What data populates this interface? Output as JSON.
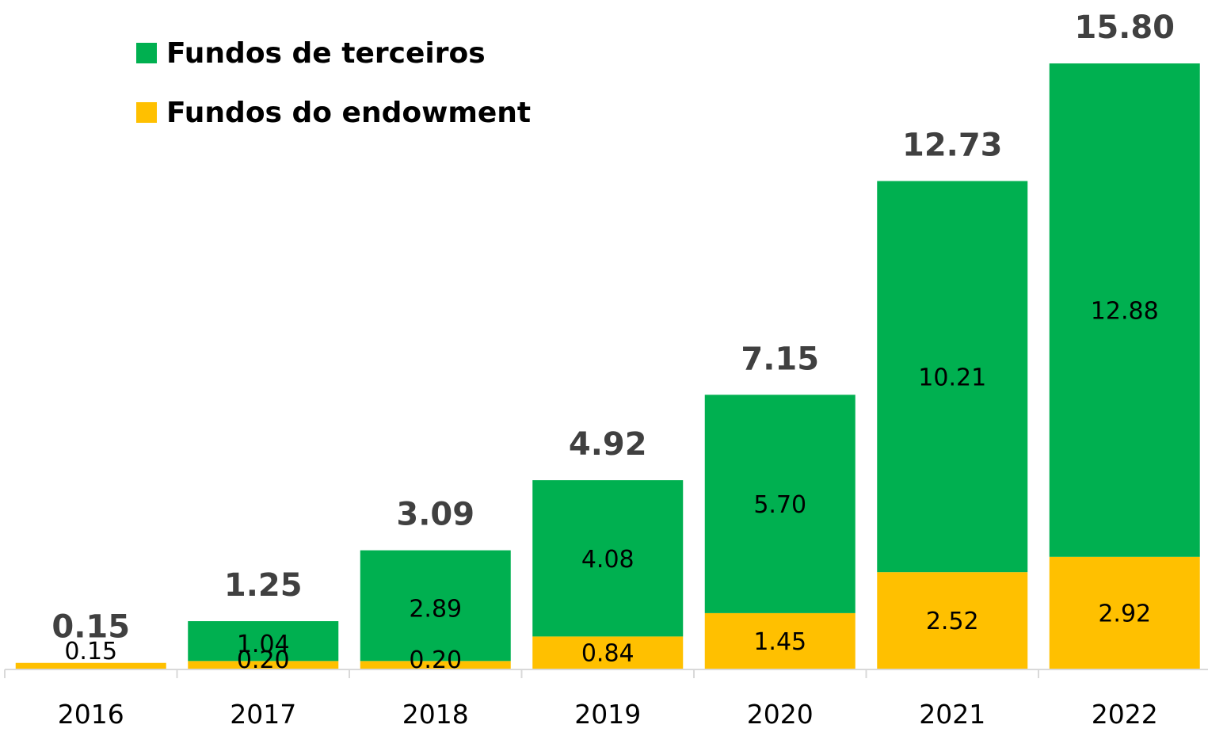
{
  "chart_data": {
    "type": "bar",
    "stacked": true,
    "title": "",
    "xlabel": "",
    "ylabel": "",
    "categories": [
      "2016",
      "2017",
      "2018",
      "2019",
      "2020",
      "2021",
      "2022"
    ],
    "series": [
      {
        "name": "Fundos do endowment",
        "color": "#FFC000",
        "values": [
          0.15,
          0.2,
          0.2,
          0.84,
          1.45,
          2.52,
          2.92
        ],
        "labels": [
          "0.15",
          "0.20",
          "0.20",
          "0.84",
          "1.45",
          "2.52",
          "2.92"
        ]
      },
      {
        "name": "Fundos de terceiros",
        "color": "#00B050",
        "values": [
          0,
          1.04,
          2.89,
          4.08,
          5.7,
          10.21,
          12.88
        ],
        "labels": [
          "",
          "1.04",
          "2.89",
          "4.08",
          "5.70",
          "10.21",
          "12.88"
        ]
      }
    ],
    "totals": [
      "0.15",
      "1.25",
      "3.09",
      "4.92",
      "7.15",
      "12.73",
      "15.80"
    ],
    "ylim": [
      0,
      16.4
    ],
    "grid": false,
    "legend_position": "top-left"
  }
}
